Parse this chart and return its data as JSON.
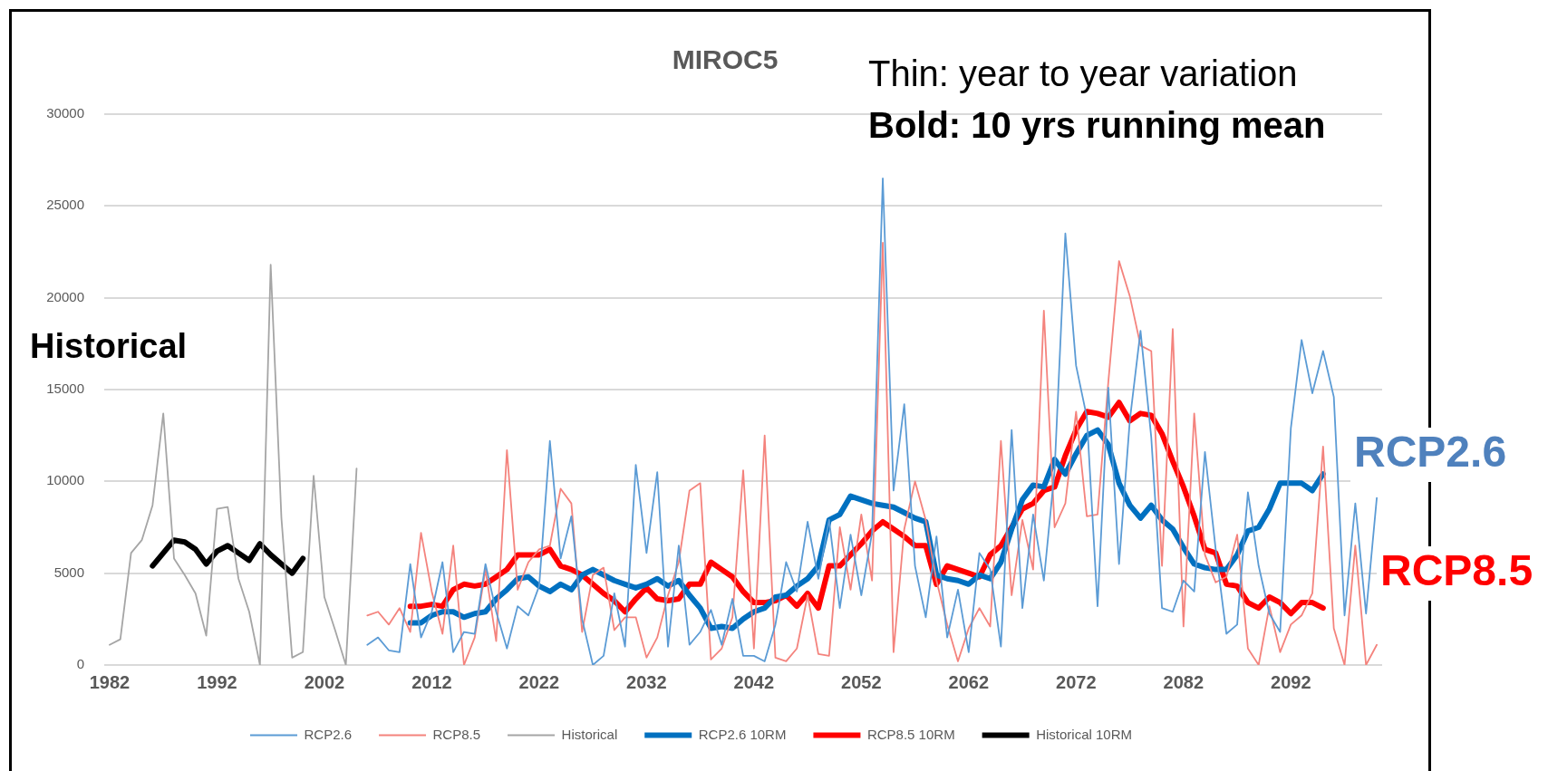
{
  "chart_data": {
    "type": "line",
    "title": "MIROC5",
    "x": [
      1982,
      1983,
      1984,
      1985,
      1986,
      1987,
      1988,
      1989,
      1990,
      1991,
      1992,
      1993,
      1994,
      1995,
      1996,
      1997,
      1998,
      1999,
      2000,
      2001,
      2002,
      2003,
      2004,
      2005,
      2006,
      2007,
      2008,
      2009,
      2010,
      2011,
      2012,
      2013,
      2014,
      2015,
      2016,
      2017,
      2018,
      2019,
      2020,
      2021,
      2022,
      2023,
      2024,
      2025,
      2026,
      2027,
      2028,
      2029,
      2030,
      2031,
      2032,
      2033,
      2034,
      2035,
      2036,
      2037,
      2038,
      2039,
      2040,
      2041,
      2042,
      2043,
      2044,
      2045,
      2046,
      2047,
      2048,
      2049,
      2050,
      2051,
      2052,
      2053,
      2054,
      2055,
      2056,
      2057,
      2058,
      2059,
      2060,
      2061,
      2062,
      2063,
      2064,
      2065,
      2066,
      2067,
      2068,
      2069,
      2070,
      2071,
      2072,
      2073,
      2074,
      2075,
      2076,
      2077,
      2078,
      2079,
      2080,
      2081,
      2082,
      2083,
      2084,
      2085,
      2086,
      2087,
      2088,
      2089,
      2090,
      2091,
      2092,
      2093,
      2094,
      2095,
      2096,
      2097,
      2098,
      2099,
      2100
    ],
    "xlim": [
      1981.5,
      2100.5
    ],
    "xticks": [
      1982,
      1992,
      2002,
      2012,
      2022,
      2032,
      2042,
      2052,
      2062,
      2072,
      2082,
      2092
    ],
    "ylim": [
      0,
      30000
    ],
    "yticks": [
      0,
      5000,
      10000,
      15000,
      20000,
      25000,
      30000
    ],
    "grid": "y",
    "legend": "bottom",
    "series": [
      {
        "name": "RCP2.6",
        "color": "#5b9bd5",
        "values": [
          null,
          null,
          null,
          null,
          null,
          null,
          null,
          null,
          null,
          null,
          null,
          null,
          null,
          null,
          null,
          null,
          null,
          null,
          null,
          null,
          null,
          null,
          null,
          null,
          1100,
          1500,
          800,
          700,
          5500,
          1500,
          2900,
          5600,
          700,
          1800,
          1700,
          5500,
          2900,
          900,
          3200,
          2700,
          4300,
          12200,
          5800,
          8100,
          2500,
          0,
          500,
          3900,
          1000,
          10900,
          6100,
          10500,
          1000,
          6500,
          1100,
          1800,
          3000,
          1100,
          3600,
          500,
          500,
          200,
          2200,
          5600,
          4000,
          7800,
          4700,
          7900,
          3100,
          7100,
          3800,
          7200,
          26500,
          9500,
          14200,
          5400,
          2600,
          7000,
          1500,
          4100,
          700,
          6100,
          5200,
          1000,
          12800,
          3100,
          8200,
          4600,
          10600,
          23500,
          16300,
          13500,
          3200,
          15100,
          5500,
          13300,
          18200,
          12400,
          3100,
          2900,
          4600,
          4000,
          11600,
          6300,
          1700,
          2200,
          9400,
          5400,
          2800,
          1800,
          12900,
          17700,
          14800,
          17100,
          14600,
          2700,
          8800,
          2800,
          9100
        ]
      },
      {
        "name": "RCP8.5",
        "color": "#f4837d",
        "values": [
          null,
          null,
          null,
          null,
          null,
          null,
          null,
          null,
          null,
          null,
          null,
          null,
          null,
          null,
          null,
          null,
          null,
          null,
          null,
          null,
          null,
          null,
          null,
          null,
          2700,
          2900,
          2200,
          3100,
          1800,
          7200,
          4000,
          1700,
          6500,
          0,
          1500,
          5200,
          1300,
          11700,
          4100,
          5600,
          6300,
          6500,
          9600,
          8800,
          1800,
          4900,
          5300,
          1900,
          2600,
          2600,
          400,
          1500,
          3800,
          5600,
          9500,
          9900,
          300,
          900,
          2600,
          10600,
          900,
          12500,
          400,
          200,
          900,
          3800,
          600,
          500,
          7500,
          4100,
          8200,
          4600,
          23000,
          700,
          7400,
          10000,
          7900,
          4600,
          2200,
          200,
          2000,
          3100,
          2100,
          12200,
          3800,
          7900,
          5200,
          19300,
          7500,
          8800,
          13800,
          8100,
          8200,
          15400,
          22000,
          20100,
          17400,
          17100,
          5400,
          18300,
          2100,
          13700,
          6000,
          4500,
          4800,
          7100,
          900,
          0,
          3200,
          700,
          2200,
          2700,
          3900,
          11900,
          2000,
          0,
          6500,
          0,
          1100
        ]
      },
      {
        "name": "Historical",
        "color": "#a5a5a5",
        "values": [
          1100,
          1400,
          6100,
          6800,
          8700,
          13700,
          5800,
          4900,
          3900,
          1600,
          8500,
          8600,
          4700,
          2900,
          0,
          21800,
          8000,
          400,
          700,
          10300,
          3700,
          1900,
          0,
          10700,
          null,
          null,
          null,
          null,
          null,
          null,
          null,
          null,
          null,
          null,
          null,
          null,
          null,
          null,
          null,
          null,
          null,
          null,
          null,
          null,
          null,
          null,
          null,
          null,
          null,
          null,
          null,
          null,
          null,
          null,
          null,
          null,
          null,
          null,
          null,
          null,
          null,
          null,
          null,
          null,
          null,
          null,
          null,
          null,
          null,
          null,
          null,
          null,
          null,
          null,
          null,
          null,
          null,
          null,
          null,
          null,
          null,
          null,
          null,
          null,
          null,
          null,
          null,
          null,
          null,
          null,
          null,
          null,
          null,
          null,
          null,
          null,
          null,
          null,
          null,
          null,
          null,
          null,
          null,
          null,
          null,
          null,
          null,
          null,
          null,
          null,
          null,
          null,
          null,
          null,
          null,
          null,
          null,
          null,
          null
        ]
      },
      {
        "name": "RCP2.6 10RM",
        "color": "#0070c0",
        "values": [
          null,
          null,
          null,
          null,
          null,
          null,
          null,
          null,
          null,
          null,
          null,
          null,
          null,
          null,
          null,
          null,
          null,
          null,
          null,
          null,
          null,
          null,
          null,
          null,
          null,
          null,
          null,
          null,
          2300,
          2300,
          2700,
          2900,
          2900,
          2600,
          2800,
          2900,
          3600,
          4100,
          4700,
          4800,
          4300,
          4000,
          4400,
          4100,
          4900,
          5200,
          4900,
          4600,
          4400,
          4200,
          4400,
          4700,
          4300,
          4600,
          3800,
          3100,
          2000,
          2100,
          2000,
          2500,
          2900,
          3100,
          3700,
          3800,
          4300,
          4700,
          5400,
          7900,
          8200,
          9200,
          9000,
          8800,
          8700,
          8600,
          8300,
          8000,
          7800,
          4900,
          4700,
          4600,
          4400,
          4900,
          4700,
          5600,
          7400,
          9000,
          9800,
          9700,
          11200,
          10400,
          11500,
          12500,
          12800,
          12000,
          9900,
          8700,
          8000,
          8700,
          7900,
          7400,
          6400,
          5500,
          5300,
          5200,
          5200,
          6000,
          7300,
          7500,
          8500,
          9900,
          9900,
          9900,
          9500,
          10400,
          null,
          null,
          null,
          null,
          null
        ]
      },
      {
        "name": "RCP8.5 10RM",
        "color": "#ff0000",
        "values": [
          null,
          null,
          null,
          null,
          null,
          null,
          null,
          null,
          null,
          null,
          null,
          null,
          null,
          null,
          null,
          null,
          null,
          null,
          null,
          null,
          null,
          null,
          null,
          null,
          null,
          null,
          null,
          null,
          3200,
          3200,
          3300,
          3200,
          4100,
          4400,
          4300,
          4400,
          4800,
          5200,
          6000,
          6000,
          6000,
          6300,
          5400,
          5200,
          4900,
          4400,
          3900,
          3500,
          2900,
          3600,
          4200,
          3600,
          3500,
          3600,
          4400,
          4400,
          5600,
          5200,
          4800,
          4000,
          3400,
          3400,
          3500,
          3800,
          3200,
          3900,
          3100,
          5400,
          5400,
          6000,
          6600,
          7300,
          7800,
          7400,
          7000,
          6500,
          6500,
          4400,
          5400,
          5200,
          5000,
          4800,
          6000,
          6500,
          7500,
          8500,
          8800,
          9500,
          9700,
          11400,
          12800,
          13800,
          13700,
          13500,
          14300,
          13300,
          13700,
          13600,
          12600,
          11100,
          9700,
          8100,
          6300,
          6100,
          4400,
          4300,
          3400,
          3100,
          3700,
          3400,
          2800,
          3400,
          3400,
          3100,
          null,
          null,
          null,
          null,
          null
        ]
      },
      {
        "name": "Historical 10RM",
        "color": "#000000",
        "values": [
          null,
          null,
          null,
          null,
          5400,
          6100,
          6800,
          6700,
          6300,
          5500,
          6200,
          6500,
          6100,
          5700,
          6600,
          6000,
          5500,
          5000,
          5800,
          null,
          null,
          null,
          null,
          null,
          null,
          null,
          null,
          null,
          null,
          null,
          null,
          null,
          null,
          null,
          null,
          null,
          null,
          null,
          null,
          null,
          null,
          null,
          null,
          null,
          null,
          null,
          null,
          null,
          null,
          null,
          null,
          null,
          null,
          null,
          null,
          null,
          null,
          null,
          null,
          null,
          null,
          null,
          null,
          null,
          null,
          null,
          null,
          null,
          null,
          null,
          null,
          null,
          null,
          null,
          null,
          null,
          null,
          null,
          null,
          null,
          null,
          null,
          null,
          null,
          null,
          null,
          null,
          null,
          null,
          null,
          null,
          null,
          null,
          null,
          null,
          null,
          null,
          null,
          null,
          null,
          null,
          null,
          null,
          null,
          null,
          null,
          null,
          null,
          null,
          null,
          null,
          null,
          null,
          null,
          null,
          null,
          null,
          null,
          null
        ]
      }
    ],
    "annotations": [
      "Thin: year to year variation",
      "Bold: 10 yrs running mean",
      "Historical",
      "RCP2.6",
      "RCP8.5"
    ]
  }
}
